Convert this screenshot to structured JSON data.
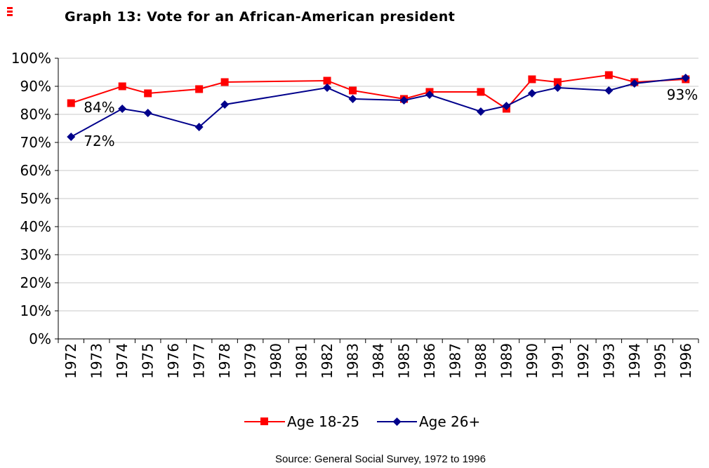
{
  "chart_data": {
    "type": "line",
    "title": "Graph 13: Vote for an African-American president",
    "source": "Source: General Social Survey, 1972 to 1996",
    "categories": [
      "1972",
      "1973",
      "1974",
      "1975",
      "1976",
      "1977",
      "1978",
      "1979",
      "1980",
      "1981",
      "1982",
      "1983",
      "1984",
      "1985",
      "1986",
      "1987",
      "1988",
      "1989",
      "1990",
      "1991",
      "1992",
      "1993",
      "1994",
      "1995",
      "1996"
    ],
    "ylim": [
      0,
      100
    ],
    "yticks": [
      "0%",
      "10%",
      "20%",
      "30%",
      "40%",
      "50%",
      "60%",
      "70%",
      "80%",
      "90%",
      "100%"
    ],
    "grid": true,
    "legend_position": "bottom",
    "series": [
      {
        "name": "Age 18-25",
        "color": "#ff0000",
        "marker": "square",
        "values": [
          84,
          null,
          90,
          87.5,
          null,
          89,
          91.5,
          null,
          null,
          null,
          92,
          88.5,
          null,
          85.5,
          88,
          null,
          88,
          82,
          92.5,
          91.5,
          null,
          94,
          91.5,
          null,
          92.5
        ]
      },
      {
        "name": "Age 26+",
        "color": "#00008b",
        "marker": "diamond",
        "values": [
          72,
          null,
          82,
          80.5,
          null,
          75.5,
          83.5,
          null,
          null,
          null,
          89.5,
          85.5,
          null,
          85,
          87,
          null,
          81,
          83,
          87.5,
          89.5,
          null,
          88.5,
          91,
          null,
          93
        ]
      }
    ],
    "annotations": [
      {
        "text": "84%",
        "category": "1972",
        "value": 84
      },
      {
        "text": "72%",
        "category": "1972",
        "value": 72
      },
      {
        "text": "93%",
        "category": "1996",
        "value": 93
      }
    ]
  },
  "header": {
    "logo_icon": "red-stacked-bars-logo"
  }
}
